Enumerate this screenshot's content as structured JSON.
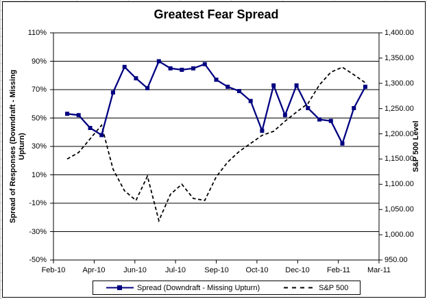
{
  "window": {
    "background": "#ffffff",
    "frame_border": "#000000"
  },
  "chart_data": {
    "type": "line",
    "title": "Greatest Fear Spread",
    "legend_position": "bottom",
    "grid": "horizontal-major",
    "x_tick_labels": [
      "Feb-10",
      "Apr-10",
      "Jun-10",
      "Jul-10",
      "Sep-10",
      "Oct-10",
      "Dec-10",
      "Feb-11",
      "Mar-11"
    ],
    "left_axis": {
      "label": "Spread of Responses (Downdraft - Missing Upturn)",
      "title_lines": [
        "Spread of Responses (Downdraft - Missing",
        "Upturn)"
      ],
      "min": -50,
      "max": 110,
      "tick_step": 20,
      "tick_labels": [
        "110%",
        "90%",
        "70%",
        "50%",
        "30%",
        "10%",
        "-10%",
        "-30%",
        "-50%"
      ]
    },
    "right_axis": {
      "label": "S&P 500 Level",
      "min": 950,
      "max": 1400,
      "tick_step": 50,
      "tick_labels": [
        "1,400.00",
        "1,350.00",
        "1,300.00",
        "1,250.00",
        "1,200.00",
        "1,150.00",
        "1,100.00",
        "1,050.00",
        "1,000.00",
        "950.00"
      ]
    },
    "series": [
      {
        "name": "Spread (Downdraft - Missing Upturn)",
        "axis": "left",
        "style": "solid",
        "marker": "square",
        "color": "#000080",
        "unit": "%",
        "values": [
          53,
          52,
          43,
          38,
          68,
          86,
          78,
          71,
          90,
          85,
          84,
          85,
          88,
          77,
          72,
          69,
          62,
          41,
          73,
          52,
          73,
          57,
          49,
          48,
          32,
          57,
          72
        ]
      },
      {
        "name": "S&P 500",
        "axis": "right",
        "style": "dashed",
        "marker": "none",
        "color": "#000000",
        "values": [
          1150,
          1163,
          1190,
          1217,
          1130,
          1087,
          1068,
          1116,
          1028,
          1080,
          1100,
          1072,
          1068,
          1115,
          1144,
          1165,
          1181,
          1197,
          1205,
          1225,
          1243,
          1260,
          1297,
          1322,
          1332,
          1317,
          1301
        ]
      }
    ],
    "points_per_series": 27
  }
}
